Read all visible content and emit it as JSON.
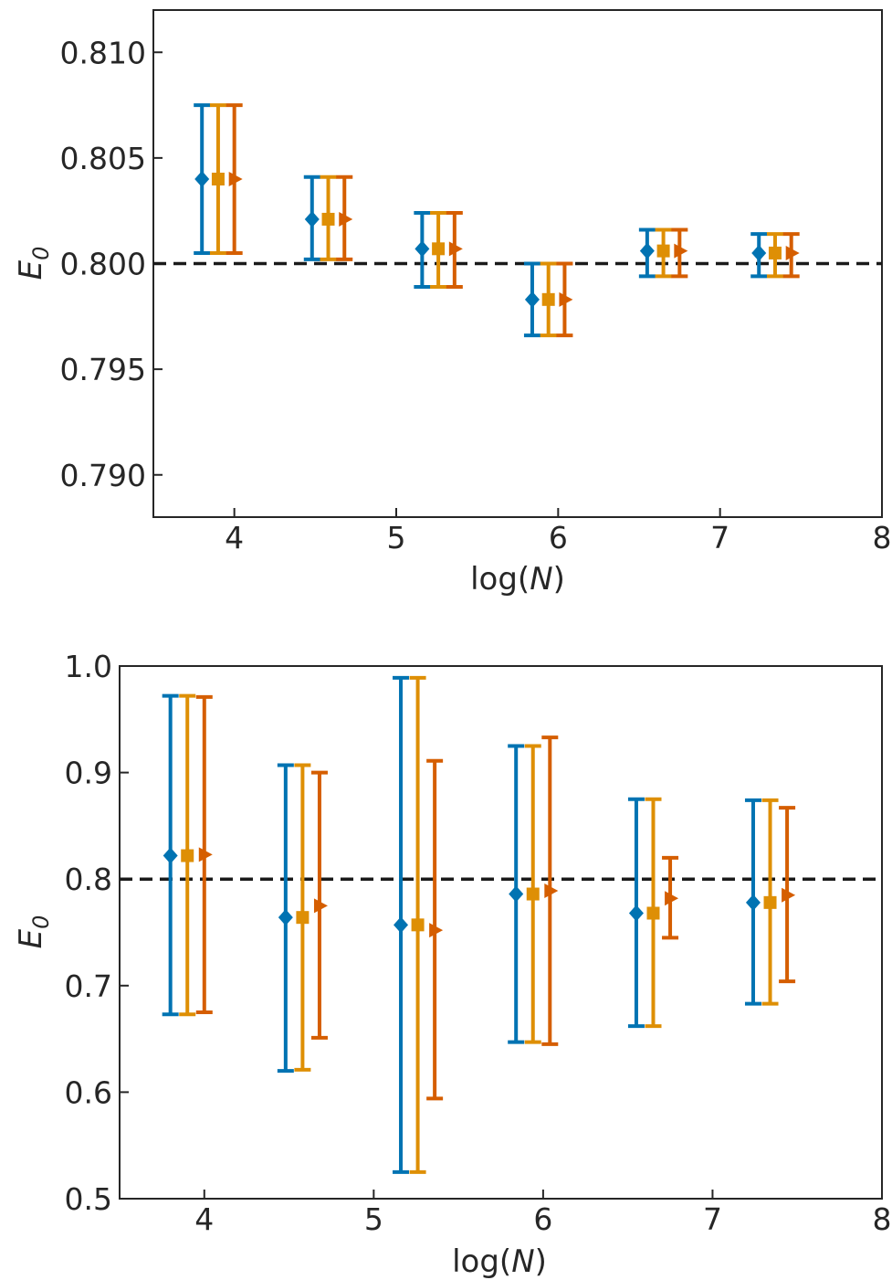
{
  "colors": {
    "series": [
      "#0173b2",
      "#de8f05",
      "#d55e00"
    ],
    "reference_line": "#1a1a1a",
    "axes": "#262626"
  },
  "chart_data": [
    {
      "type": "scatter",
      "title": "",
      "xlabel": "log(N)",
      "ylabel": "E_0",
      "xlim": [
        3.5,
        8.0
      ],
      "ylim": [
        0.788,
        0.812
      ],
      "xticks": [
        4,
        5,
        6,
        7,
        8
      ],
      "xtick_labels": [
        "4",
        "5",
        "6",
        "7",
        "8"
      ],
      "yticks": [
        0.79,
        0.795,
        0.8,
        0.805,
        0.81
      ],
      "ytick_labels": [
        "0.790",
        "0.795",
        "0.800",
        "0.805",
        "0.810"
      ],
      "reference_line": {
        "y": 0.8,
        "style": "dashed"
      },
      "grid": false,
      "legend": "none",
      "series": [
        {
          "marker": "diamond",
          "x": [
            3.8,
            4.48,
            5.16,
            5.84,
            6.55,
            7.24
          ],
          "y": [
            0.804,
            0.8021,
            0.8007,
            0.7983,
            0.8006,
            0.8005
          ],
          "ylow": [
            0.8005,
            0.8002,
            0.7989,
            0.7966,
            0.7994,
            0.7994
          ],
          "yhigh": [
            0.8075,
            0.8041,
            0.8024,
            0.8,
            0.8016,
            0.8014
          ]
        },
        {
          "marker": "square",
          "x": [
            3.9,
            4.58,
            5.26,
            5.94,
            6.65,
            7.34
          ],
          "y": [
            0.804,
            0.8021,
            0.8007,
            0.7983,
            0.8006,
            0.8005
          ],
          "ylow": [
            0.8005,
            0.8002,
            0.7989,
            0.7966,
            0.7994,
            0.7994
          ],
          "yhigh": [
            0.8075,
            0.8041,
            0.8024,
            0.8,
            0.8016,
            0.8014
          ]
        },
        {
          "marker": "triangle-right",
          "x": [
            4.0,
            4.68,
            5.36,
            6.04,
            6.75,
            7.44
          ],
          "y": [
            0.804,
            0.8021,
            0.8007,
            0.7983,
            0.8006,
            0.8005
          ],
          "ylow": [
            0.8005,
            0.8002,
            0.7989,
            0.7966,
            0.7994,
            0.7994
          ],
          "yhigh": [
            0.8075,
            0.8041,
            0.8024,
            0.8,
            0.8016,
            0.8014
          ]
        }
      ]
    },
    {
      "type": "scatter",
      "title": "",
      "xlabel": "log(N)",
      "ylabel": "E_0",
      "xlim": [
        3.5,
        8.0
      ],
      "ylim": [
        0.5,
        1.0
      ],
      "xticks": [
        4,
        5,
        6,
        7,
        8
      ],
      "xtick_labels": [
        "4",
        "5",
        "6",
        "7",
        "8"
      ],
      "yticks": [
        0.5,
        0.6,
        0.7,
        0.8,
        0.9,
        1.0
      ],
      "ytick_labels": [
        "0.5",
        "0.6",
        "0.7",
        "0.8",
        "0.9",
        "1.0"
      ],
      "reference_line": {
        "y": 0.8,
        "style": "dashed"
      },
      "grid": false,
      "legend": "none",
      "series": [
        {
          "marker": "diamond",
          "x": [
            3.8,
            4.48,
            5.16,
            5.84,
            6.55,
            7.24
          ],
          "y": [
            0.822,
            0.764,
            0.757,
            0.786,
            0.768,
            0.778
          ],
          "ylow": [
            0.673,
            0.62,
            0.525,
            0.647,
            0.662,
            0.683
          ],
          "yhigh": [
            0.972,
            0.907,
            0.989,
            0.925,
            0.875,
            0.874
          ]
        },
        {
          "marker": "square",
          "x": [
            3.9,
            4.58,
            5.26,
            5.94,
            6.65,
            7.34
          ],
          "y": [
            0.822,
            0.764,
            0.757,
            0.786,
            0.768,
            0.778
          ],
          "ylow": [
            0.673,
            0.621,
            0.525,
            0.647,
            0.662,
            0.683
          ],
          "yhigh": [
            0.972,
            0.907,
            0.989,
            0.925,
            0.875,
            0.874
          ]
        },
        {
          "marker": "triangle-right",
          "x": [
            4.0,
            4.68,
            5.36,
            6.04,
            6.75,
            7.44
          ],
          "y": [
            0.823,
            0.775,
            0.752,
            0.789,
            0.782,
            0.785
          ],
          "ylow": [
            0.675,
            0.651,
            0.594,
            0.645,
            0.745,
            0.704
          ],
          "yhigh": [
            0.971,
            0.9,
            0.911,
            0.933,
            0.82,
            0.867
          ]
        }
      ]
    }
  ]
}
